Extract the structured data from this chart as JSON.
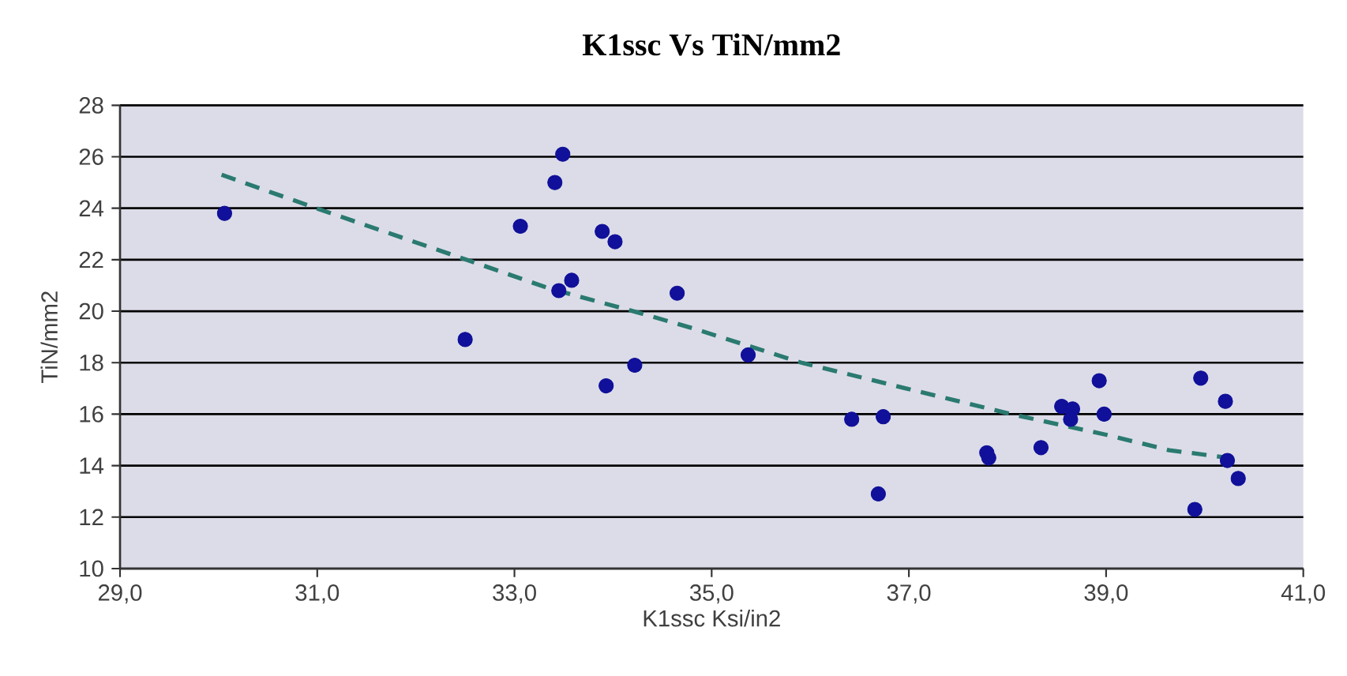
{
  "chart_data": {
    "type": "scatter",
    "title": "K1ssc Vs TiN/mm2",
    "xlabel": "K1ssc Ksi/in2",
    "ylabel": "TiN/mm2",
    "xlim": [
      29,
      41
    ],
    "xticks": [
      {
        "value": 29,
        "label": "29,0"
      },
      {
        "value": 31,
        "label": "31,0"
      },
      {
        "value": 33,
        "label": "33,0"
      },
      {
        "value": 35,
        "label": "35,0"
      },
      {
        "value": 37,
        "label": "37,0"
      },
      {
        "value": 39,
        "label": "39,0"
      },
      {
        "value": 41,
        "label": "41,0"
      }
    ],
    "ylim": [
      10,
      28
    ],
    "yticks": [
      10,
      12,
      14,
      16,
      18,
      20,
      22,
      24,
      26,
      28
    ],
    "grid": "y",
    "series": [
      {
        "type": "scatter",
        "marker": "circle",
        "color": "#10109a",
        "x": [
          30.06,
          32.5,
          33.06,
          33.41,
          33.49,
          33.45,
          33.58,
          33.89,
          34.02,
          33.93,
          34.22,
          34.65,
          35.37,
          36.42,
          36.74,
          36.69,
          37.79,
          37.81,
          38.34,
          38.55,
          38.66,
          38.64,
          38.93,
          38.98,
          39.96,
          40.21,
          40.23,
          40.34,
          39.9
        ],
        "values": [
          23.8,
          18.9,
          23.3,
          25.0,
          26.1,
          20.8,
          21.2,
          23.1,
          22.7,
          17.1,
          17.9,
          20.7,
          18.3,
          15.8,
          15.9,
          12.9,
          14.5,
          14.3,
          14.7,
          16.3,
          16.2,
          15.8,
          17.3,
          16.0,
          17.4,
          16.5,
          14.2,
          13.5,
          12.3
        ]
      },
      {
        "type": "line",
        "marker": "none",
        "line_style": "dashed",
        "color": "#2a7a70",
        "x": [
          30.03,
          30.99,
          32.59,
          33.34,
          34.3,
          34.84,
          35.91,
          36.97,
          38.04,
          39.0,
          39.64,
          40.25
        ],
        "values": [
          25.3,
          24.0,
          21.9,
          20.9,
          19.9,
          19.3,
          18.0,
          17.0,
          16.0,
          15.2,
          14.6,
          14.3
        ]
      }
    ]
  }
}
